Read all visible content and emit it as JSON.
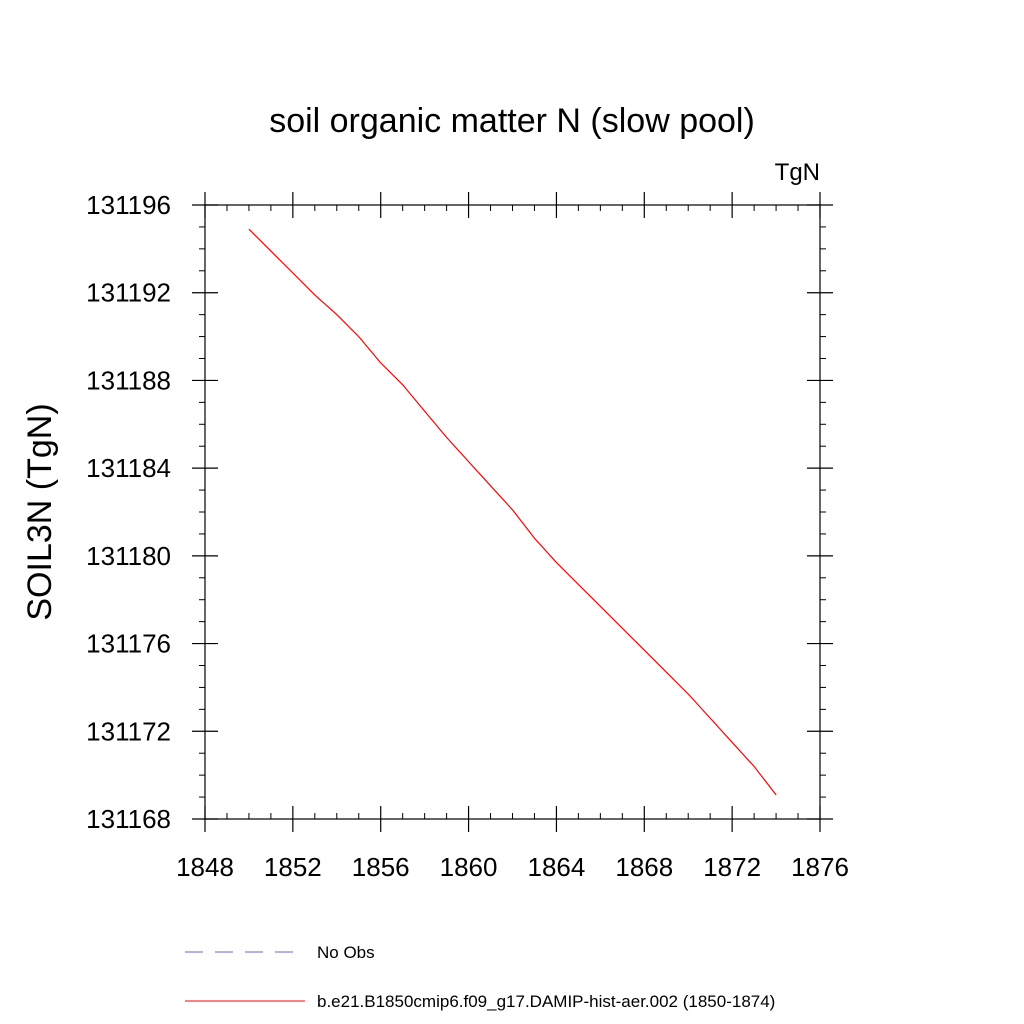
{
  "chart_data": {
    "type": "line",
    "title": "soil organic matter N (slow pool)",
    "units": "TgN",
    "ylabel": "SOIL3N  (TgN)",
    "xlabel": "",
    "xlim": [
      1848,
      1876
    ],
    "ylim": [
      131168,
      131196
    ],
    "x_ticks": [
      1848,
      1852,
      1856,
      1860,
      1864,
      1868,
      1872,
      1876
    ],
    "y_ticks": [
      131168,
      131172,
      131176,
      131180,
      131184,
      131188,
      131192,
      131196
    ],
    "x_minor_step": 1,
    "y_minor_step": 1,
    "grid": false,
    "legend_position": "bottom",
    "series": [
      {
        "name": "No Obs",
        "style": "dashed",
        "color": "#6666cc",
        "x": [],
        "y": []
      },
      {
        "name": "b.e21.B1850cmip6.f09_g17.DAMIP-hist-aer.002 (1850-1874)",
        "style": "solid",
        "color": "#ff0000",
        "x": [
          1850,
          1851,
          1852,
          1853,
          1854,
          1855,
          1856,
          1857,
          1858,
          1859,
          1860,
          1861,
          1862,
          1863,
          1864,
          1865,
          1866,
          1867,
          1868,
          1869,
          1870,
          1871,
          1872,
          1873,
          1874
        ],
        "y": [
          131194.9,
          131193.9,
          131192.9,
          131191.9,
          131191.0,
          131190.0,
          131188.8,
          131187.8,
          131186.6,
          131185.4,
          131184.3,
          131183.2,
          131182.1,
          131180.8,
          131179.7,
          131178.7,
          131177.7,
          131176.7,
          131175.7,
          131174.7,
          131173.7,
          131172.6,
          131171.5,
          131170.4,
          131169.1
        ]
      }
    ]
  }
}
